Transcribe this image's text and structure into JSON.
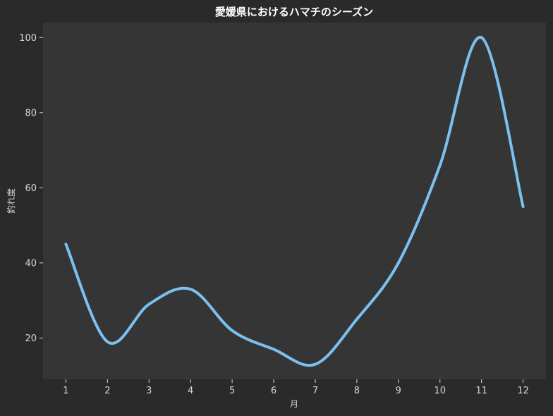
{
  "chart_data": {
    "type": "line",
    "title": "愛媛県におけるハマチのシーズン",
    "xlabel": "月",
    "ylabel": "釣れ度",
    "x": [
      1,
      2,
      3,
      4,
      5,
      6,
      7,
      8,
      9,
      10,
      11,
      12
    ],
    "x_tick_labels": [
      "1",
      "2",
      "3",
      "4",
      "5",
      "6",
      "7",
      "8",
      "9",
      "10",
      "11",
      "12"
    ],
    "series": [
      {
        "values": [
          45,
          19,
          29,
          33,
          22,
          17,
          13,
          25,
          40,
          66,
          100,
          55
        ]
      }
    ],
    "xlim": [
      0.45,
      12.55
    ],
    "ylim": [
      9,
      104
    ],
    "y_ticks": [
      20,
      40,
      60,
      80,
      100
    ],
    "grid": false,
    "smooth": true,
    "colors": {
      "figure_background": "#2a2a2a",
      "plot_background": "#353535",
      "line": "#7cc0f0",
      "text": "#d6d6d6",
      "title": "#ffffff"
    }
  }
}
